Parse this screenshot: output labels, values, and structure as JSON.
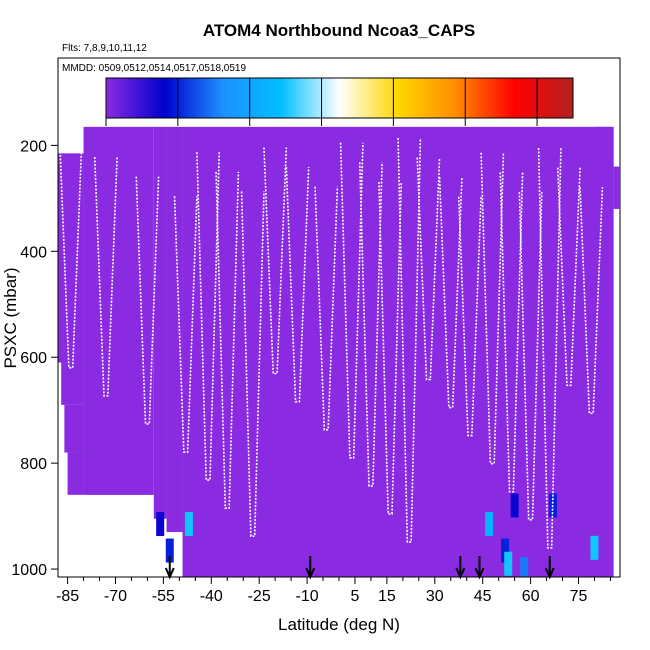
{
  "chart_data": {
    "type": "heatmap",
    "title": "ATOM4 Northbound Ncoa3_CAPS",
    "flights_label": "Flts: 7,8,9,10,11,12",
    "mmdd_label": "MMDD: 0509,0512,0514,0517,0518,0519",
    "xlabel": "Latitude (deg N)",
    "ylabel": "PSXC (mbar)",
    "xlim": [
      -88,
      88
    ],
    "ylim": [
      1015,
      35
    ],
    "y_reversed": true,
    "x_ticks": [
      -85,
      -70,
      -55,
      -40,
      -25,
      -10,
      5,
      15,
      30,
      45,
      60,
      75
    ],
    "y_ticks": [
      200,
      400,
      600,
      800,
      1000
    ],
    "colorbar": {
      "range": [
        0,
        13
      ],
      "ticks": [
        0,
        2,
        4,
        6,
        8,
        10,
        12
      ],
      "colors": [
        "#8a2be2",
        "#0000cd",
        "#1e90ff",
        "#00bfff",
        "#ffffff",
        "#ffd700",
        "#ff8c00",
        "#ff0000",
        "#b22222"
      ]
    },
    "background_value": 0,
    "high_value_cells": [
      {
        "lat": -56,
        "p": 915,
        "value": 1.5
      },
      {
        "lat": -53,
        "p": 965,
        "value": 2.0
      },
      {
        "lat": -47,
        "p": 915,
        "value": 5.0
      },
      {
        "lat": 47,
        "p": 915,
        "value": 4.5
      },
      {
        "lat": 52,
        "p": 965,
        "value": 2.0
      },
      {
        "lat": 53,
        "p": 990,
        "value": 5.0
      },
      {
        "lat": 55,
        "p": 880,
        "value": 1.5
      },
      {
        "lat": 58,
        "p": 1000,
        "value": 3.0
      },
      {
        "lat": 67,
        "p": 880,
        "value": 2.0
      },
      {
        "lat": 80,
        "p": 960,
        "value": 5.0
      }
    ],
    "arrow_latitudes": [
      -53,
      -9,
      38,
      44,
      66
    ]
  }
}
